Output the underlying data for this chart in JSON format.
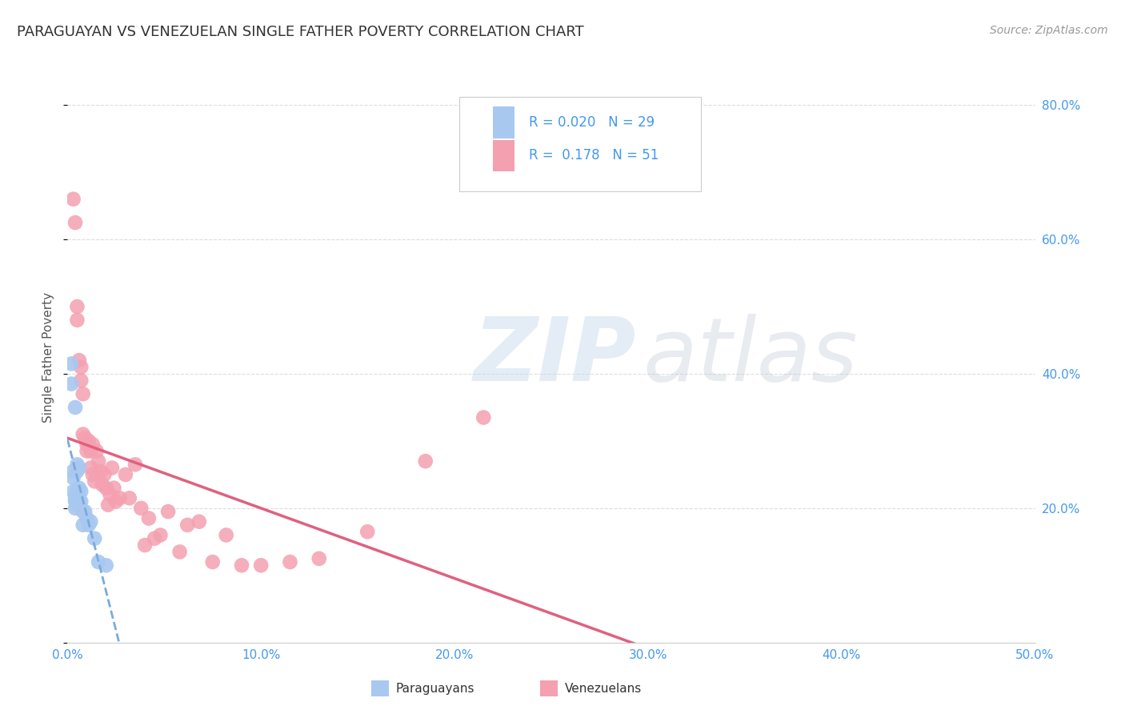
{
  "title": "PARAGUAYAN VS VENEZUELAN SINGLE FATHER POVERTY CORRELATION CHART",
  "source": "Source: ZipAtlas.com",
  "ylabel": "Single Father Poverty",
  "xlim": [
    0.0,
    0.5
  ],
  "ylim": [
    0.0,
    0.85
  ],
  "xticks": [
    0.0,
    0.1,
    0.2,
    0.3,
    0.4,
    0.5
  ],
  "xticklabels": [
    "0.0%",
    "10.0%",
    "20.0%",
    "30.0%",
    "40.0%",
    "50.0%"
  ],
  "yticks": [
    0.0,
    0.2,
    0.4,
    0.6,
    0.8
  ],
  "right_yticks": [
    0.2,
    0.4,
    0.6,
    0.8
  ],
  "right_yticklabels": [
    "20.0%",
    "40.0%",
    "60.0%",
    "80.0%"
  ],
  "legend_paraguayan_R": "0.020",
  "legend_paraguayan_N": "29",
  "legend_venezuelan_R": "0.178",
  "legend_venezuelan_N": "51",
  "paraguayan_color": "#a8c8f0",
  "venezuelan_color": "#f4a0b0",
  "paraguayan_line_color": "#7aaadd",
  "venezuelan_line_color": "#e06080",
  "paraguayan_x": [
    0.002,
    0.002,
    0.003,
    0.003,
    0.003,
    0.004,
    0.004,
    0.004,
    0.004,
    0.005,
    0.005,
    0.005,
    0.005,
    0.005,
    0.006,
    0.006,
    0.006,
    0.006,
    0.007,
    0.007,
    0.008,
    0.008,
    0.009,
    0.01,
    0.011,
    0.012,
    0.014,
    0.016,
    0.02
  ],
  "paraguayan_y": [
    0.415,
    0.385,
    0.255,
    0.245,
    0.225,
    0.35,
    0.215,
    0.21,
    0.2,
    0.265,
    0.255,
    0.225,
    0.215,
    0.205,
    0.26,
    0.23,
    0.215,
    0.205,
    0.225,
    0.21,
    0.195,
    0.175,
    0.195,
    0.185,
    0.175,
    0.18,
    0.155,
    0.12,
    0.115
  ],
  "venezuelan_x": [
    0.003,
    0.004,
    0.005,
    0.005,
    0.006,
    0.007,
    0.007,
    0.008,
    0.008,
    0.009,
    0.01,
    0.01,
    0.011,
    0.012,
    0.012,
    0.013,
    0.013,
    0.014,
    0.015,
    0.016,
    0.017,
    0.018,
    0.019,
    0.02,
    0.021,
    0.022,
    0.023,
    0.024,
    0.025,
    0.027,
    0.03,
    0.032,
    0.035,
    0.038,
    0.04,
    0.042,
    0.045,
    0.048,
    0.052,
    0.058,
    0.062,
    0.068,
    0.075,
    0.082,
    0.09,
    0.1,
    0.115,
    0.13,
    0.155,
    0.185,
    0.215
  ],
  "venezuelan_y": [
    0.66,
    0.625,
    0.5,
    0.48,
    0.42,
    0.41,
    0.39,
    0.37,
    0.31,
    0.305,
    0.295,
    0.285,
    0.3,
    0.285,
    0.26,
    0.295,
    0.25,
    0.24,
    0.285,
    0.27,
    0.255,
    0.235,
    0.25,
    0.23,
    0.205,
    0.22,
    0.26,
    0.23,
    0.21,
    0.215,
    0.25,
    0.215,
    0.265,
    0.2,
    0.145,
    0.185,
    0.155,
    0.16,
    0.195,
    0.135,
    0.175,
    0.18,
    0.12,
    0.16,
    0.115,
    0.115,
    0.12,
    0.125,
    0.165,
    0.27,
    0.335
  ],
  "background_color": "#ffffff",
  "grid_color": "#dddddd"
}
